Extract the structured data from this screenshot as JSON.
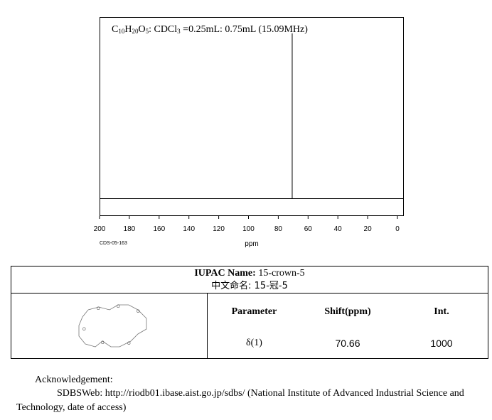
{
  "chart_data": {
    "type": "line",
    "title_formula_parts": [
      "C",
      "10",
      "H",
      "20",
      "O",
      "5",
      ": CDCl",
      "3",
      " =0.25mL: 0.75mL (15.09MHz)"
    ],
    "xlabel": "ppm",
    "xlim": [
      200,
      0
    ],
    "xticks": [
      200,
      180,
      160,
      140,
      120,
      100,
      80,
      60,
      40,
      20,
      0
    ],
    "code_label": "CDS-05-163",
    "peaks": [
      {
        "x": 70.66,
        "intensity": 1000
      }
    ],
    "ylim": [
      0,
      1000
    ]
  },
  "info": {
    "iupac_label": "IUPAC Name:",
    "iupac_value": "15-crown-5",
    "chinese_label": "中文命名:",
    "chinese_value": "15-冠-5",
    "structure_name": "15-crown-5 structure",
    "table": {
      "headers": [
        "Parameter",
        "Shift(ppm)",
        "Int."
      ],
      "rows": [
        [
          "δ(1)",
          "70.66",
          "1000"
        ]
      ]
    }
  },
  "ack": {
    "heading": "Acknowledgement:",
    "line1": "SDBSWeb: http://riodb01.ibase.aist.go.jp/sdbs/ (National Institute of Advanced Industrial Science and",
    "line2": "Technology, date of access)"
  }
}
